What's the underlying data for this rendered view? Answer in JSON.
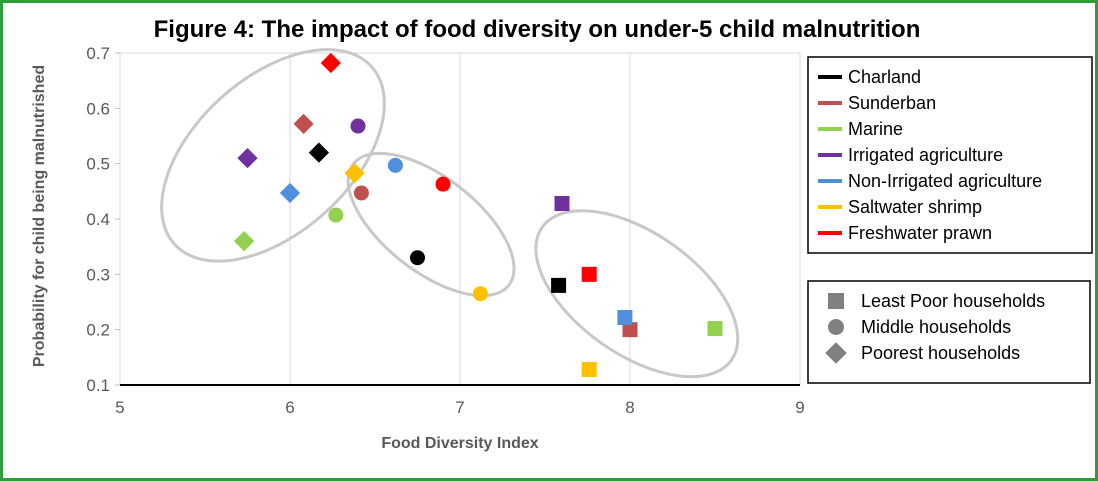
{
  "chart_data": {
    "type": "scatter",
    "title": "Figure 4: The impact of food diversity on under-5 child malnutrition",
    "xlabel": "Food Diversity Index",
    "ylabel": "Probability for child being malnutrished",
    "xlim": [
      5,
      9
    ],
    "ylim": [
      0.1,
      0.7
    ],
    "xticks": [
      "5",
      "6",
      "7",
      "8",
      "9"
    ],
    "yticks": [
      "0.1",
      "0.2",
      "0.3",
      "0.4",
      "0.5",
      "0.6",
      "0.7"
    ],
    "grid": "vertical",
    "legend_position": "right",
    "series": [
      {
        "name": "Charland",
        "color": "#000000",
        "points": [
          {
            "x": 7.58,
            "y": 0.28,
            "marker": "square"
          },
          {
            "x": 6.75,
            "y": 0.33,
            "marker": "circle"
          },
          {
            "x": 6.17,
            "y": 0.52,
            "marker": "diamond"
          }
        ]
      },
      {
        "name": "Sunderban",
        "color": "#c0504d",
        "points": [
          {
            "x": 8.0,
            "y": 0.2,
            "marker": "square"
          },
          {
            "x": 6.42,
            "y": 0.447,
            "marker": "circle"
          },
          {
            "x": 6.08,
            "y": 0.572,
            "marker": "diamond"
          }
        ]
      },
      {
        "name": "Marine",
        "color": "#92d050",
        "points": [
          {
            "x": 8.5,
            "y": 0.202,
            "marker": "square"
          },
          {
            "x": 6.27,
            "y": 0.407,
            "marker": "circle"
          },
          {
            "x": 5.73,
            "y": 0.36,
            "marker": "diamond"
          }
        ]
      },
      {
        "name": "Irrigated agriculture",
        "color": "#7030a0",
        "points": [
          {
            "x": 7.6,
            "y": 0.428,
            "marker": "square"
          },
          {
            "x": 6.4,
            "y": 0.568,
            "marker": "circle"
          },
          {
            "x": 5.75,
            "y": 0.51,
            "marker": "diamond"
          }
        ]
      },
      {
        "name": "Non-Irrigated agriculture",
        "color": "#4f8fdc",
        "points": [
          {
            "x": 7.97,
            "y": 0.222,
            "marker": "square"
          },
          {
            "x": 6.62,
            "y": 0.497,
            "marker": "circle"
          },
          {
            "x": 6.0,
            "y": 0.447,
            "marker": "diamond"
          }
        ]
      },
      {
        "name": "Saltwater shrimp",
        "color": "#ffc000",
        "points": [
          {
            "x": 7.76,
            "y": 0.128,
            "marker": "square"
          },
          {
            "x": 7.12,
            "y": 0.265,
            "marker": "circle"
          },
          {
            "x": 6.38,
            "y": 0.483,
            "marker": "diamond"
          }
        ]
      },
      {
        "name": "Freshwater prawn",
        "color": "#ff0000",
        "points": [
          {
            "x": 7.76,
            "y": 0.3,
            "marker": "square"
          },
          {
            "x": 6.9,
            "y": 0.463,
            "marker": "circle"
          },
          {
            "x": 6.24,
            "y": 0.682,
            "marker": "diamond"
          }
        ]
      }
    ],
    "marker_legend": [
      {
        "marker": "square",
        "label": "Least Poor households"
      },
      {
        "marker": "circle",
        "label": "Middle households"
      },
      {
        "marker": "diamond",
        "label": "Poorest households"
      }
    ],
    "cluster_color": "#c8c8c8",
    "clusters": [
      {
        "cx": 5.9,
        "cy": 0.515,
        "rx": 0.78,
        "ry": 0.14,
        "angle_deg": -42
      },
      {
        "cx": 6.83,
        "cy": 0.39,
        "rx": 0.58,
        "ry": 0.085,
        "angle_deg": 38
      },
      {
        "cx": 8.04,
        "cy": 0.265,
        "rx": 0.68,
        "ry": 0.11,
        "angle_deg": 35
      }
    ]
  }
}
